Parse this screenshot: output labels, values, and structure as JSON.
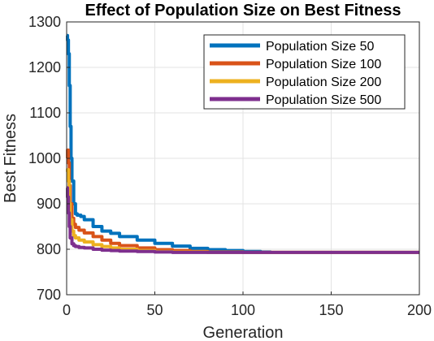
{
  "chart_data": {
    "type": "line",
    "title": "Effect of Population Size on Best Fitness",
    "xlabel": "Generation",
    "ylabel": "Best Fitness",
    "xlim": [
      0,
      200
    ],
    "ylim": [
      700,
      1300
    ],
    "xticks": [
      0,
      50,
      100,
      150,
      200
    ],
    "yticks": [
      700,
      800,
      900,
      1000,
      1100,
      1200,
      1300
    ],
    "grid": true,
    "legend_position": "top-right",
    "series": [
      {
        "name": "Population Size 50",
        "color": "#0072BD",
        "x": [
          0,
          0.5,
          1,
          1.5,
          2,
          2.5,
          3,
          4,
          5,
          6,
          8,
          10,
          15,
          20,
          25,
          30,
          40,
          50,
          60,
          70,
          80,
          90,
          100,
          110,
          116
        ],
        "y": [
          1270,
          1260,
          1230,
          1160,
          1070,
          1000,
          950,
          900,
          878,
          875,
          872,
          865,
          850,
          840,
          835,
          828,
          820,
          813,
          807,
          802,
          799,
          797,
          795,
          794,
          794
        ]
      },
      {
        "name": "Population Size 100",
        "color": "#D95319",
        "x": [
          0,
          0.5,
          1,
          1.5,
          2,
          3,
          4,
          5,
          7,
          10,
          15,
          20,
          25,
          30,
          40,
          50,
          60,
          70,
          80,
          100,
          200
        ],
        "y": [
          1000,
          1018,
          990,
          940,
          900,
          868,
          855,
          848,
          842,
          836,
          828,
          820,
          813,
          808,
          803,
          799,
          797,
          795,
          794,
          793,
          793
        ]
      },
      {
        "name": "Population Size 200",
        "color": "#EDB120",
        "x": [
          0,
          0.5,
          1,
          1.5,
          2,
          3,
          4,
          5,
          7,
          10,
          15,
          20,
          25,
          30,
          40,
          50,
          60,
          80,
          100,
          200
        ],
        "y": [
          970,
          975,
          950,
          900,
          865,
          840,
          830,
          825,
          820,
          816,
          810,
          806,
          803,
          800,
          797,
          795,
          794,
          793,
          793,
          793
        ]
      },
      {
        "name": "Population Size 500",
        "color": "#7E2F8E",
        "x": [
          0,
          0.5,
          1,
          1.5,
          2,
          3,
          4,
          5,
          7,
          10,
          15,
          20,
          25,
          30,
          40,
          50,
          60,
          80,
          100,
          200
        ],
        "y": [
          935,
          915,
          880,
          850,
          825,
          812,
          808,
          806,
          804,
          803,
          800,
          798,
          797,
          796,
          795,
          794,
          793,
          793,
          793,
          793
        ]
      }
    ]
  }
}
